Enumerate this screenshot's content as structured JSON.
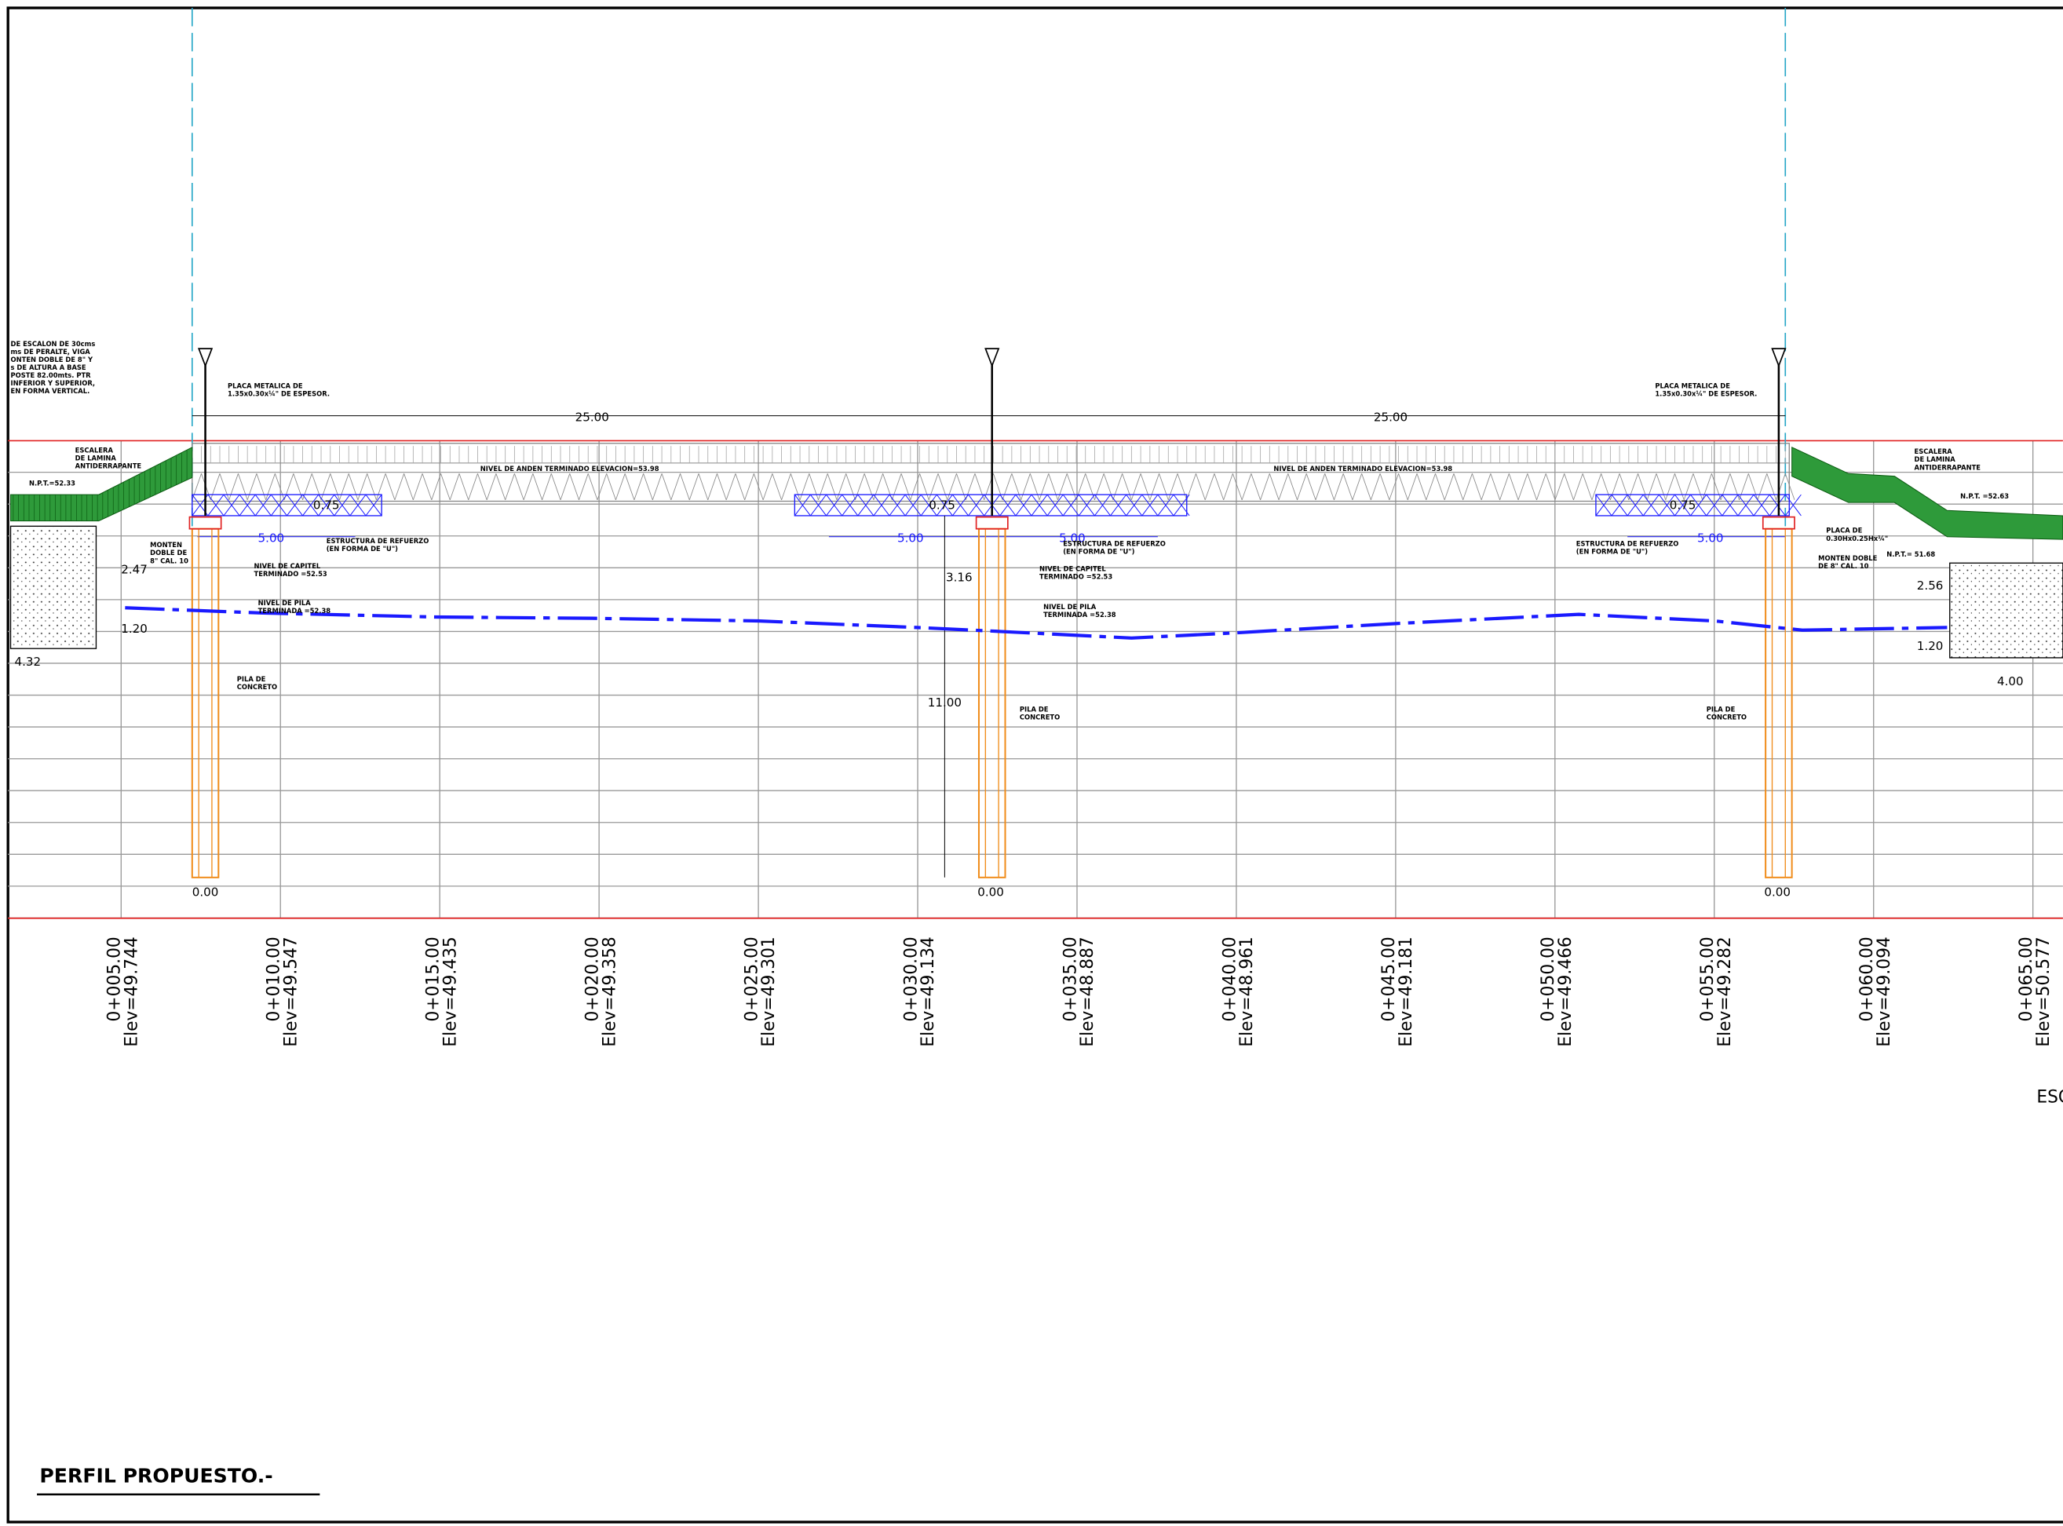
{
  "title": "PERFIL PROPUESTO.-",
  "scale_label": "ESC",
  "stations": [
    {
      "station": "0+005.00",
      "elev": "Elev=49.744"
    },
    {
      "station": "0+010.00",
      "elev": "Elev=49.547"
    },
    {
      "station": "0+015.00",
      "elev": "Elev=49.435"
    },
    {
      "station": "0+020.00",
      "elev": "Elev=49.358"
    },
    {
      "station": "0+025.00",
      "elev": "Elev=49.301"
    },
    {
      "station": "0+030.00",
      "elev": "Elev=49.134"
    },
    {
      "station": "0+035.00",
      "elev": "Elev=48.887"
    },
    {
      "station": "0+040.00",
      "elev": "Elev=48.961"
    },
    {
      "station": "0+045.00",
      "elev": "Elev=49.181"
    },
    {
      "station": "0+050.00",
      "elev": "Elev=49.466"
    },
    {
      "station": "0+055.00",
      "elev": "Elev=49.282"
    },
    {
      "station": "0+060.00",
      "elev": "Elev=49.094"
    },
    {
      "station": "0+065.00",
      "elev": "Elev=50.577"
    }
  ],
  "dimensions": {
    "span_left": "25.00",
    "span_right": "25.00",
    "reinf_left": "5.00",
    "reinf_mid_left": "5.00",
    "reinf_mid_right": "5.00",
    "reinf_right": "5.00",
    "depth_left": "0.75",
    "depth_mid": "0.75",
    "depth_right": "0.75",
    "left_height": "2.47",
    "left_footing": "1.20",
    "left_width": "4.32",
    "mid_height": "3.16",
    "pile_length": "11.00",
    "right_height": "2.56",
    "right_footing": "1.20",
    "right_width": "4.00",
    "pile_base_left": "0.00",
    "pile_base_mid": "0.00",
    "pile_base_right": "0.00"
  },
  "notes": {
    "left_stair_note": [
      "DE ESCALON DE 30cms",
      "ms DE PERALTE, VIGA",
      "ONTEN DOBLE DE 8\" Y",
      "s DE ALTURA A BASE",
      "POSTE 82.00mts. PTR",
      "INFERIOR Y SUPERIOR,",
      "EN FORMA VERTICAL."
    ],
    "plate_left": [
      "PLACA METALICA DE",
      "1.35x0.30x¼\" DE ESPESOR."
    ],
    "plate_right": [
      "PLACA METALICA DE",
      "1.35x0.30x¼\" DE ESPESOR."
    ],
    "deck_left": "NIVEL DE ANDEN TERMINADO ELEVACION=53.98",
    "deck_right": "NIVEL DE ANDEN TERMINADO ELEVACION=53.98",
    "stair_left": [
      "ESCALERA",
      "DE LAMINA",
      "ANTIDERRAPANTE"
    ],
    "stair_right": [
      "ESCALERA",
      "DE LAMINA",
      "ANTIDERRAPANTE"
    ],
    "npt_left": "N.P.T.=52.33",
    "npt_right": "N.P.T. =52.63",
    "npt_right_low": "N.P.T.= 51.68",
    "monten_left": [
      "MONTEN",
      "DOBLE DE",
      "8\" CAL. 10"
    ],
    "monten_right": [
      "MONTEN DOBLE",
      "DE 8\" CAL. 10"
    ],
    "placa_right": [
      "PLACA DE",
      "0.30Hx0.25Hx¼\""
    ],
    "reinf_left": [
      "ESTRUCTURA DE REFUERZO",
      "(EN FORMA DE \"U\")"
    ],
    "reinf_mid": [
      "ESTRUCTURA DE REFUERZO",
      "(EN FORMA DE \"U\")"
    ],
    "reinf_right": [
      "ESTRUCTURA DE REFUERZO",
      "(EN FORMA DE \"U\")"
    ],
    "capitel_left": [
      "NIVEL DE CAPITEL",
      "TERMINADO =52.53"
    ],
    "capitel_mid": [
      "NIVEL DE CAPITEL",
      "TERMINADO =52.53"
    ],
    "pila_left": [
      "NIVEL DE PILA",
      "TERMINADA =52.38"
    ],
    "pila_mid": [
      "NIVEL DE PILA",
      "TERMINADA =52.38"
    ],
    "concrete_left": [
      "PILA DE",
      "CONCRETO"
    ],
    "concrete_mid": [
      "PILA DE",
      "CONCRETO"
    ],
    "concrete_right": [
      "PILA DE",
      "CONCRETO"
    ]
  }
}
